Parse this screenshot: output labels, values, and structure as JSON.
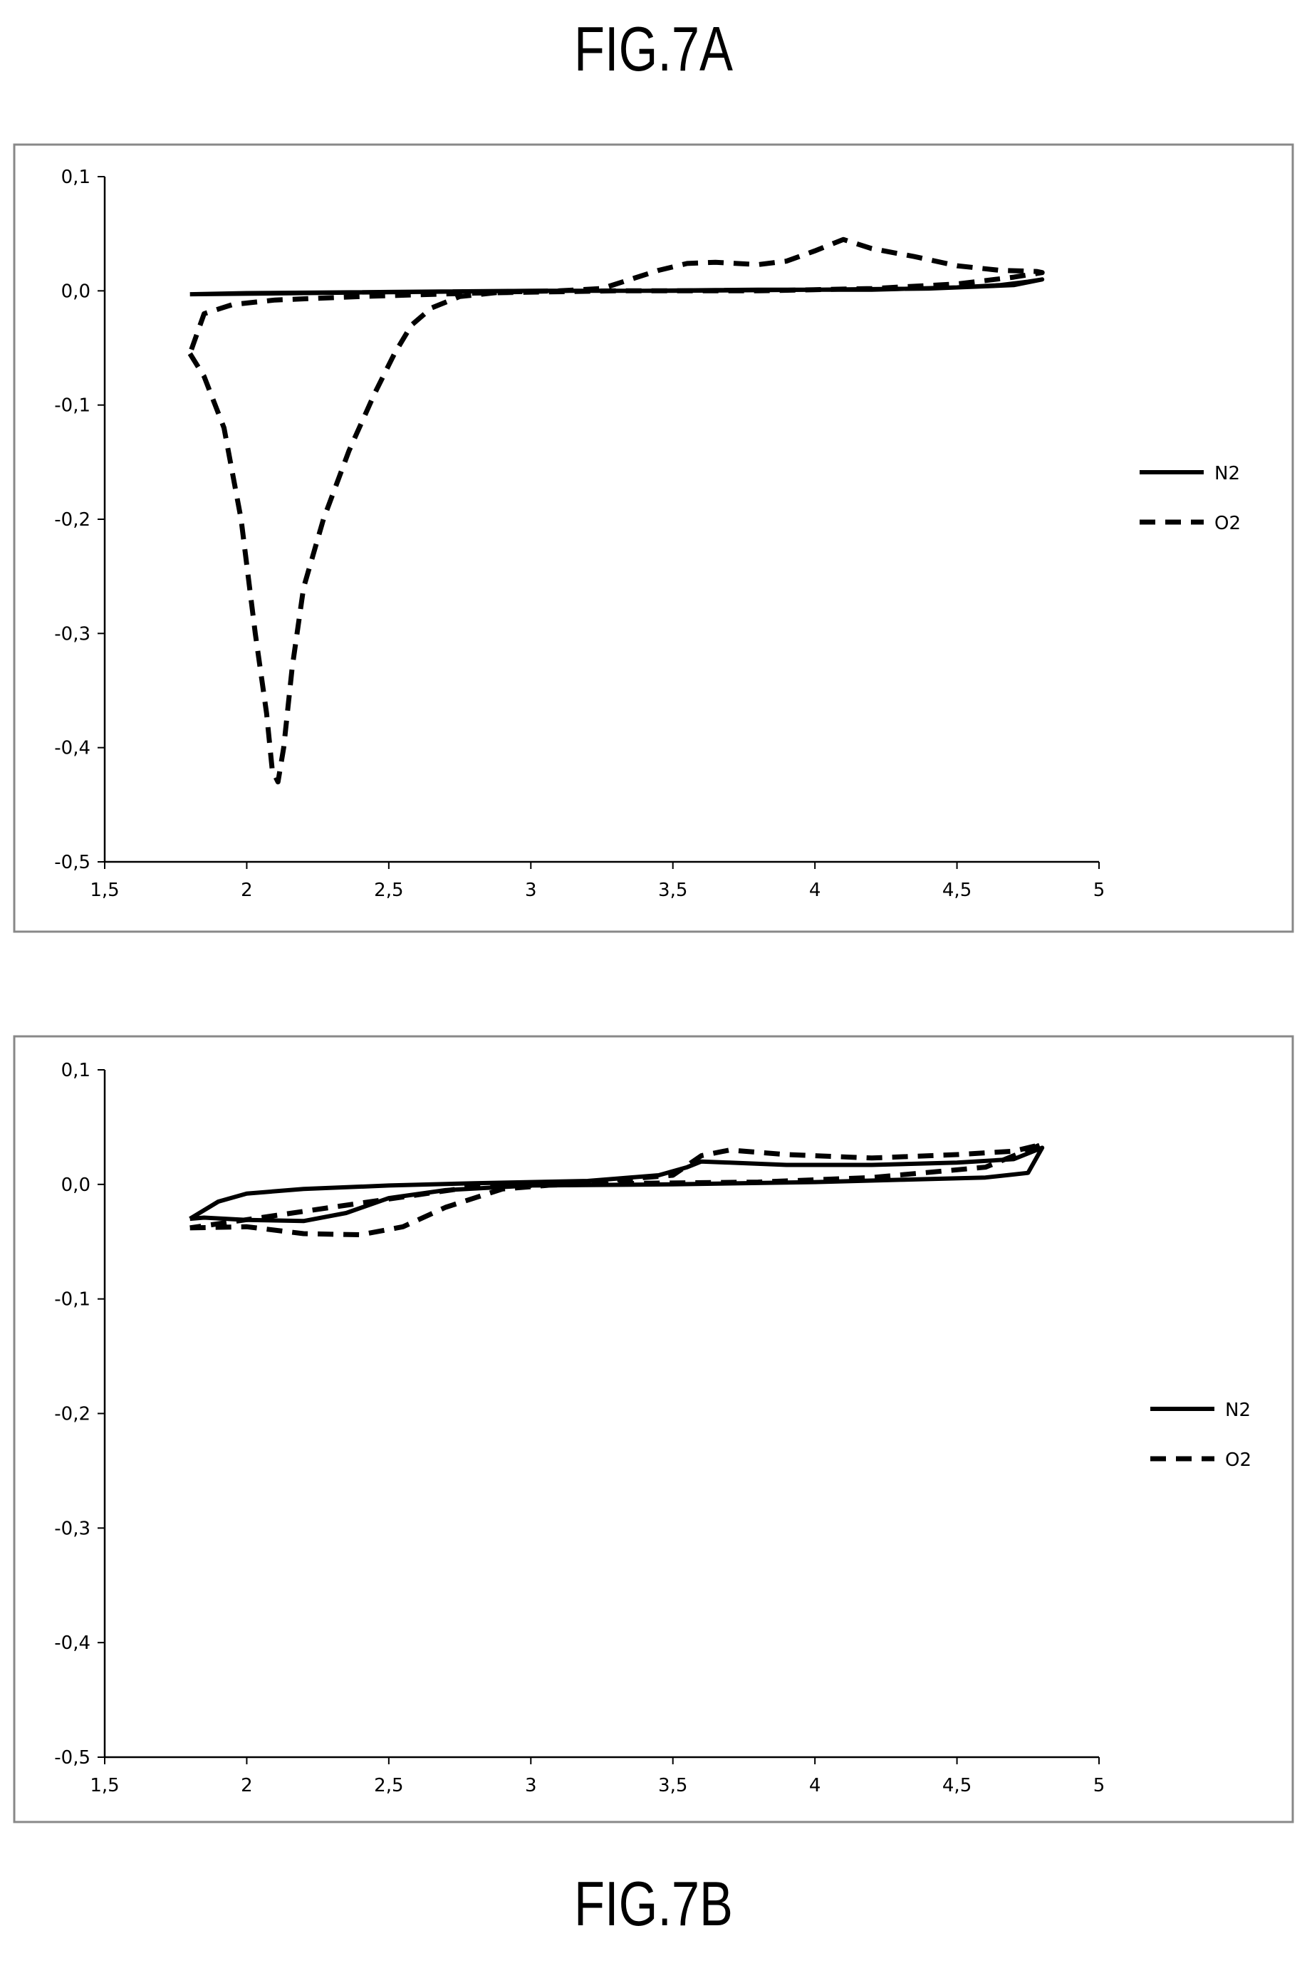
{
  "figures": {
    "a": {
      "title": "FIG.7A"
    },
    "b": {
      "title": "FIG.7B"
    }
  },
  "chart_data": [
    {
      "type": "line",
      "title": "FIG.7A",
      "xlabel": "",
      "ylabel": "",
      "xlim": [
        1.5,
        5
      ],
      "ylim": [
        -0.5,
        0.1
      ],
      "xticks": [
        1.5,
        2,
        2.5,
        3,
        3.5,
        4,
        4.5,
        5
      ],
      "yticks": [
        0.1,
        0.0,
        -0.1,
        -0.2,
        -0.3,
        -0.4,
        -0.5
      ],
      "xtick_labels": [
        "1,5",
        "2",
        "2,5",
        "3",
        "3,5",
        "4",
        "4,5",
        "5"
      ],
      "ytick_labels": [
        "0,1",
        "0,0",
        "-0,1",
        "-0,2",
        "-0,3",
        "-0,4",
        "-0,5"
      ],
      "grid": false,
      "legend": "right",
      "series": [
        {
          "name": "N2",
          "style": "solid",
          "color": "#000000",
          "x": [
            1.8,
            2.2,
            2.6,
            3.0,
            3.4,
            3.8,
            4.2,
            4.5,
            4.65,
            4.75,
            4.8,
            4.7,
            4.4,
            4.0,
            3.5,
            3.0,
            2.5,
            2.0,
            1.8
          ],
          "y": [
            -0.003,
            -0.002,
            -0.001,
            0.0,
            0.0,
            0.001,
            0.001,
            0.003,
            0.005,
            0.008,
            0.01,
            0.005,
            0.002,
            0.001,
            0.0,
            0.0,
            -0.001,
            -0.002,
            -0.003
          ]
        },
        {
          "name": "O2",
          "style": "dashed",
          "color": "#000000",
          "x": [
            1.8,
            1.85,
            1.92,
            1.98,
            2.03,
            2.07,
            2.09,
            2.11,
            2.13,
            2.16,
            2.2,
            2.27,
            2.36,
            2.45,
            2.52,
            2.58,
            2.65,
            2.75,
            2.9,
            3.1,
            3.25,
            3.35,
            3.45,
            3.55,
            3.65,
            3.8,
            3.9,
            4.0,
            4.1,
            4.2,
            4.35,
            4.5,
            4.65,
            4.78,
            4.8,
            4.7,
            4.5,
            4.2,
            3.8,
            3.3,
            2.8,
            2.4,
            2.1,
            1.95,
            1.85,
            1.8
          ],
          "y": [
            -0.055,
            -0.075,
            -0.12,
            -0.2,
            -0.3,
            -0.37,
            -0.42,
            -0.43,
            -0.4,
            -0.33,
            -0.26,
            -0.2,
            -0.14,
            -0.09,
            -0.055,
            -0.03,
            -0.015,
            -0.005,
            -0.001,
            0.0,
            0.002,
            0.01,
            0.018,
            0.024,
            0.025,
            0.023,
            0.026,
            0.035,
            0.045,
            0.037,
            0.03,
            0.022,
            0.018,
            0.017,
            0.016,
            0.012,
            0.006,
            0.002,
            0.0,
            0.0,
            -0.002,
            -0.005,
            -0.008,
            -0.012,
            -0.02,
            -0.055
          ]
        }
      ]
    },
    {
      "type": "line",
      "title": "FIG.7B",
      "xlabel": "",
      "ylabel": "",
      "xlim": [
        1.5,
        5
      ],
      "ylim": [
        -0.5,
        0.1
      ],
      "xticks": [
        1.5,
        2,
        2.5,
        3,
        3.5,
        4,
        4.5,
        5
      ],
      "yticks": [
        0.1,
        0.0,
        -0.1,
        -0.2,
        -0.3,
        -0.4,
        -0.5
      ],
      "xtick_labels": [
        "1,5",
        "2",
        "2,5",
        "3",
        "3,5",
        "4",
        "4,5",
        "5"
      ],
      "ytick_labels": [
        "0,1",
        "0,0",
        "-0,1",
        "-0,2",
        "-0,3",
        "-0,4",
        "-0,5"
      ],
      "grid": false,
      "legend": "right",
      "series": [
        {
          "name": "N2",
          "style": "solid",
          "color": "#000000",
          "x": [
            1.8,
            1.9,
            2.0,
            2.2,
            2.5,
            2.8,
            3.2,
            3.45,
            3.55,
            3.6,
            3.7,
            3.9,
            4.2,
            4.5,
            4.7,
            4.8,
            4.75,
            4.6,
            4.3,
            4.0,
            3.5,
            3.0,
            2.7,
            2.5,
            2.35,
            2.2,
            2.0,
            1.85,
            1.8
          ],
          "y": [
            -0.03,
            -0.015,
            -0.008,
            -0.004,
            -0.001,
            0.001,
            0.003,
            0.008,
            0.015,
            0.02,
            0.019,
            0.017,
            0.017,
            0.019,
            0.022,
            0.032,
            0.01,
            0.006,
            0.004,
            0.002,
            0.0,
            -0.001,
            -0.005,
            -0.012,
            -0.025,
            -0.032,
            -0.031,
            -0.029,
            -0.03
          ]
        },
        {
          "name": "O2",
          "style": "dashed",
          "color": "#000000",
          "x": [
            1.8,
            2.0,
            2.2,
            2.4,
            2.55,
            2.7,
            2.9,
            3.2,
            3.5,
            3.6,
            3.7,
            3.9,
            4.2,
            4.5,
            4.7,
            4.8,
            4.6,
            4.2,
            3.8,
            3.4,
            3.0,
            2.8,
            1.8
          ],
          "y": [
            -0.038,
            -0.037,
            -0.043,
            -0.044,
            -0.037,
            -0.02,
            -0.004,
            0.002,
            0.008,
            0.025,
            0.03,
            0.026,
            0.023,
            0.026,
            0.029,
            0.035,
            0.015,
            0.006,
            0.002,
            0.001,
            -0.001,
            -0.002,
            -0.038
          ]
        }
      ]
    }
  ]
}
